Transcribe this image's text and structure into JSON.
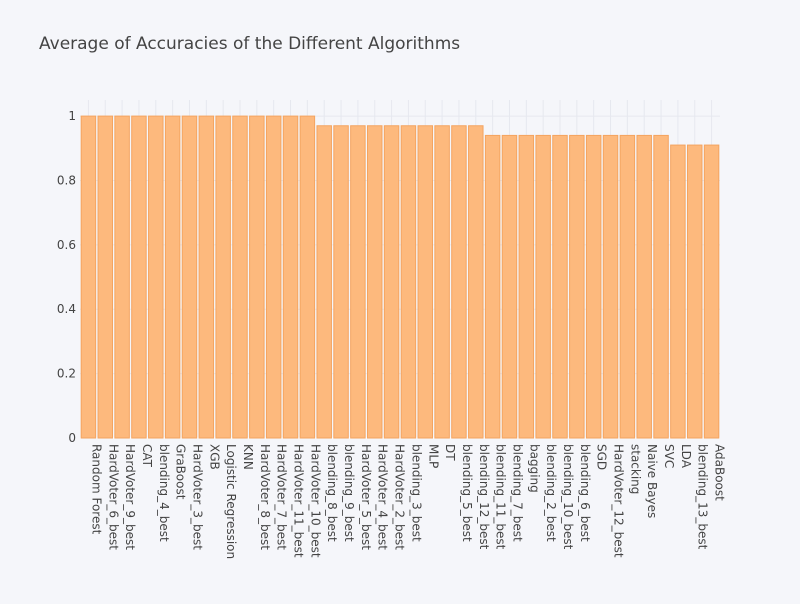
{
  "chart_data": {
    "type": "bar",
    "title": "Average of Accuracies of the Different Algorithms",
    "xlabel": "",
    "ylabel": "",
    "ylim": [
      0,
      1.05
    ],
    "yticks": [
      "0",
      "0.2",
      "0.4",
      "0.6",
      "0.8",
      "1"
    ],
    "grid": true,
    "bar_color": "#fdb97d",
    "bar_edge_color": "#f4a460",
    "categories": [
      "Random Forest",
      "HardVoter_6_best",
      "HardVoter_9_best",
      "CAT",
      "blending_4_best",
      "GraBoost",
      "HardVoter_3_best",
      "XGB",
      "Logistic Regression",
      "KNN",
      "HardVoter_8_best",
      "HardVoter_7_best",
      "HardVoter_11_best",
      "HardVoter_10_best",
      "blending_8_best",
      "blending_9_best",
      "HardVoter_5_best",
      "HardVoter_4_best",
      "HardVoter_2_best",
      "blending_3_best",
      "MLP",
      "DT",
      "blending_5_best",
      "blending_12_best",
      "blending_11_best",
      "blending_7_best",
      "bagging",
      "blending_2_best",
      "blending_10_best",
      "blending_6_best",
      "SGD",
      "HardVoter_12_best",
      "stacking",
      "Naive Bayes",
      "SVC",
      "LDA",
      "blending_13_best",
      "AdaBoost"
    ],
    "values": [
      1.0,
      1.0,
      1.0,
      1.0,
      1.0,
      1.0,
      1.0,
      1.0,
      1.0,
      1.0,
      1.0,
      1.0,
      1.0,
      1.0,
      0.97,
      0.97,
      0.97,
      0.97,
      0.97,
      0.97,
      0.97,
      0.97,
      0.97,
      0.97,
      0.94,
      0.94,
      0.94,
      0.94,
      0.94,
      0.94,
      0.94,
      0.94,
      0.94,
      0.94,
      0.94,
      0.91,
      0.91,
      0.91
    ]
  }
}
